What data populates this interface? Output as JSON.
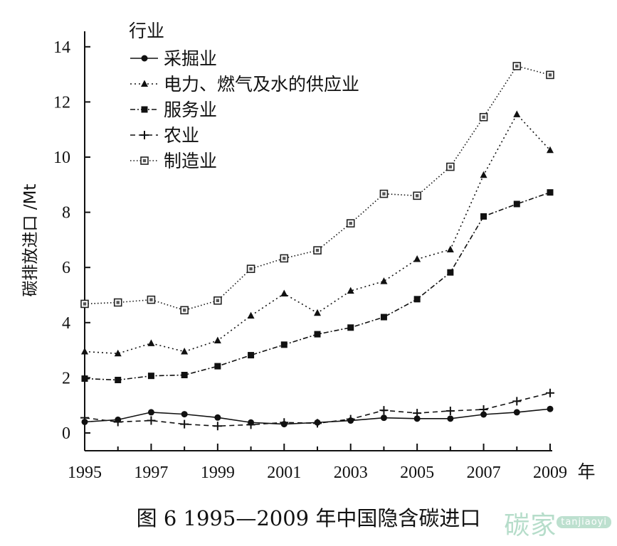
{
  "chart_data": {
    "type": "line",
    "title": "",
    "ylabel": "碳排放进口 /Mt",
    "xlabel": "年",
    "x": [
      1995,
      1996,
      1997,
      1998,
      1999,
      2000,
      2001,
      2002,
      2003,
      2004,
      2005,
      2006,
      2007,
      2008,
      2009
    ],
    "x_tick_labels": [
      "1995",
      "1997",
      "1999",
      "2001",
      "2003",
      "2005",
      "2007",
      "2009"
    ],
    "x_unit_label": "年",
    "y_ticks": [
      0,
      2,
      4,
      6,
      8,
      10,
      12,
      14
    ],
    "ylim": [
      0,
      14.5
    ],
    "xlim": [
      1995,
      2009
    ],
    "legend_title": "行业",
    "legend_position": "top-left",
    "grid": false,
    "series": [
      {
        "name": "采掘业",
        "marker": "circle",
        "dash": "solid",
        "values": [
          0.4,
          0.48,
          0.75,
          0.68,
          0.56,
          0.38,
          0.32,
          0.38,
          0.45,
          0.55,
          0.52,
          0.52,
          0.67,
          0.75,
          0.87
        ]
      },
      {
        "name": "电力、燃气及水的供应业",
        "marker": "triangle",
        "dash": "dotted",
        "values": [
          2.95,
          2.88,
          3.25,
          2.95,
          3.35,
          4.25,
          5.05,
          4.35,
          5.15,
          5.5,
          6.3,
          6.65,
          9.35,
          11.55,
          10.25
        ]
      },
      {
        "name": "服务业",
        "marker": "square",
        "dash": "dashdot",
        "values": [
          1.97,
          1.92,
          2.07,
          2.1,
          2.42,
          2.82,
          3.2,
          3.58,
          3.82,
          4.2,
          4.85,
          5.82,
          7.85,
          8.3,
          8.72
        ]
      },
      {
        "name": "农业",
        "marker": "plus",
        "dash": "dashed",
        "values": [
          0.55,
          0.4,
          0.45,
          0.32,
          0.25,
          0.3,
          0.38,
          0.35,
          0.5,
          0.82,
          0.72,
          0.8,
          0.85,
          1.15,
          1.45
        ]
      },
      {
        "name": "制造业",
        "marker": "dotted-square",
        "dash": "fine-dotted",
        "values": [
          4.68,
          4.73,
          4.83,
          4.45,
          4.8,
          5.95,
          6.33,
          6.62,
          7.6,
          8.67,
          8.6,
          9.65,
          11.45,
          13.3,
          12.98
        ]
      }
    ]
  },
  "caption": "图 6  1995—2009 年中国隐含碳进口",
  "watermark": {
    "text": "碳家",
    "site": "tanjiaoyi"
  }
}
